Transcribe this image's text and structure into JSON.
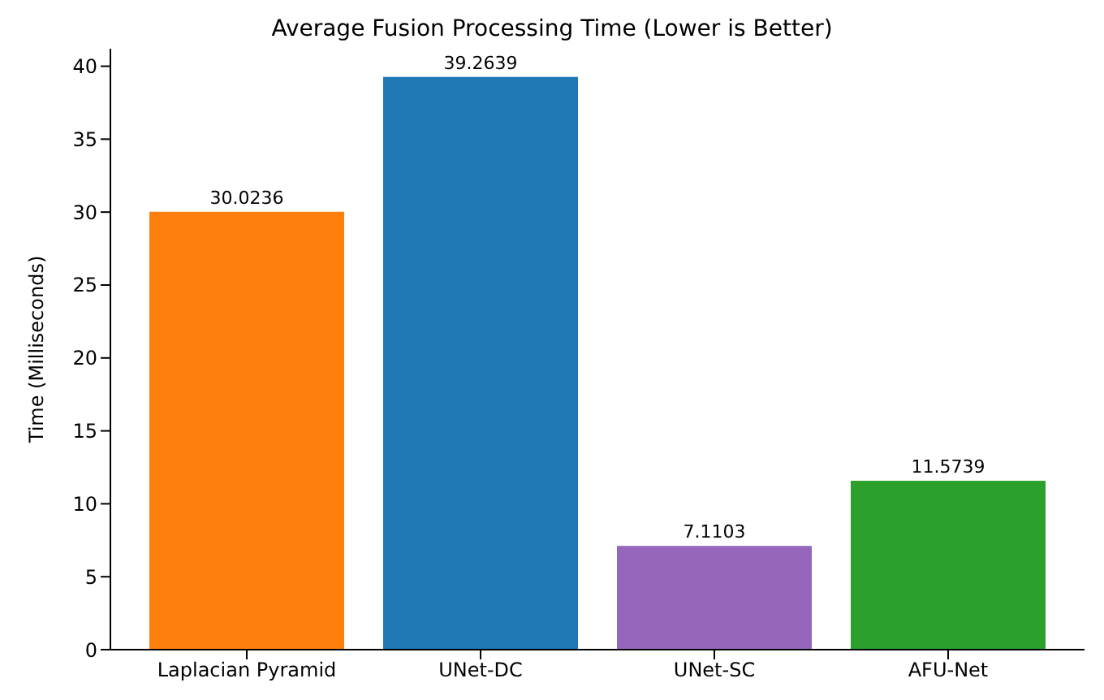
{
  "chart_data": {
    "type": "bar",
    "title": "Average Fusion Processing Time (Lower is Better)",
    "ylabel": "Time (Milliseconds)",
    "categories": [
      "Laplacian Pyramid",
      "UNet-DC",
      "UNet-SC",
      "AFU-Net"
    ],
    "values": [
      30.0236,
      39.2639,
      7.1103,
      11.5739
    ],
    "colors": [
      "#ff7f0e",
      "#1f77b4",
      "#9467bd",
      "#2ca02c"
    ],
    "ylim": [
      0,
      41.2
    ],
    "yticks": [
      0,
      5,
      10,
      15,
      20,
      25,
      30,
      35,
      40
    ],
    "grid": false,
    "legend": false,
    "data_labels": true
  }
}
